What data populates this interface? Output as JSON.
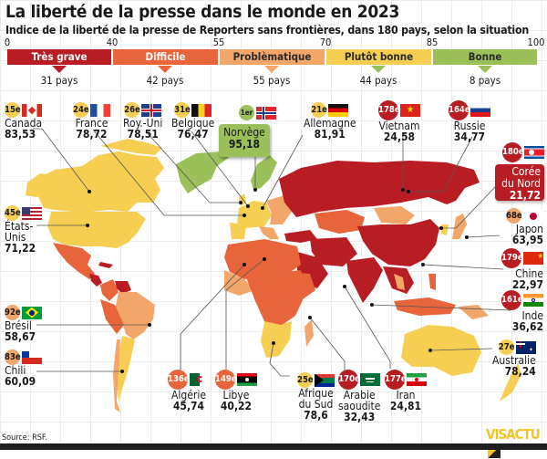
{
  "title": "La liberté de la presse dans le monde en 2023",
  "subtitle": "Indice de la liberté de la presse de Reporters sans frontières, dans 180 pays, selon la situation",
  "scale": {
    "ticks": [
      "0",
      "40",
      "55",
      "70",
      "85",
      "100"
    ],
    "categories": [
      {
        "label": "Très grave",
        "range": [
          0,
          40
        ],
        "count": "31 pays",
        "color": "#b81d24"
      },
      {
        "label": "Difficile",
        "range": [
          40,
          55
        ],
        "count": "42 pays",
        "color": "#e8643a"
      },
      {
        "label": "Problèmatique",
        "range": [
          55,
          70
        ],
        "count": "55 pays",
        "color": "#f2a66a"
      },
      {
        "label": "Plutôt bonne",
        "range": [
          70,
          85
        ],
        "count": "44 pays",
        "color": "#f6cf52"
      },
      {
        "label": "Bonne",
        "range": [
          85,
          100
        ],
        "count": "8 pays",
        "color": "#9bc05a"
      }
    ]
  },
  "countries": {
    "canada": {
      "rank": "15e",
      "name": "Canada",
      "score": "83,53",
      "category": "Plutôt bonne"
    },
    "france": {
      "rank": "24e",
      "name": "France",
      "score": "78,72",
      "category": "Plutôt bonne"
    },
    "uk": {
      "rank": "26e",
      "name": "Roy.-Uni",
      "score": "78,51",
      "category": "Plutôt bonne"
    },
    "belgium": {
      "rank": "31e",
      "name": "Belgique",
      "score": "76,47",
      "category": "Plutôt bonne"
    },
    "norway": {
      "rank": "1er",
      "name": "Norvège",
      "score": "95,18",
      "category": "Bonne"
    },
    "germany": {
      "rank": "21e",
      "name": "Allemagne",
      "score": "81,91",
      "category": "Plutôt bonne"
    },
    "vietnam": {
      "rank": "178e",
      "name": "Vietnam",
      "score": "24,58",
      "category": "Très grave"
    },
    "russia": {
      "rank": "164e",
      "name": "Russie",
      "score": "34,77",
      "category": "Très grave"
    },
    "north_korea": {
      "rank": "180e",
      "name_line1": "Corée",
      "name_line2": "du Nord",
      "score": "21,72",
      "category": "Très grave"
    },
    "japan": {
      "rank": "68e",
      "name": "Japon",
      "score": "63,95",
      "category": "Problèmatique"
    },
    "china": {
      "rank": "179e",
      "name": "Chine",
      "score": "22,97",
      "category": "Très grave"
    },
    "india": {
      "rank": "161e",
      "name": "Inde",
      "score": "36,62",
      "category": "Très grave"
    },
    "australia": {
      "rank": "27e",
      "name": "Australie",
      "score": "78,24",
      "category": "Plutôt bonne"
    },
    "usa": {
      "rank": "45e",
      "name_line1": "États-",
      "name_line2": "Unis",
      "score": "71,22",
      "category": "Plutôt bonne"
    },
    "brazil": {
      "rank": "92e",
      "name": "Brésil",
      "score": "58,67",
      "category": "Problèmatique"
    },
    "chile": {
      "rank": "83e",
      "name": "Chili",
      "score": "60,09",
      "category": "Problèmatique"
    },
    "algeria": {
      "rank": "136e",
      "name": "Algérie",
      "score": "45,74",
      "category": "Difficile"
    },
    "libya": {
      "rank": "149e",
      "name": "Libye",
      "score": "40,22",
      "category": "Difficile"
    },
    "south_africa": {
      "rank": "25e",
      "name_line1": "Afrique",
      "name_line2": "du Sud",
      "score": "78,6",
      "category": "Plutôt bonne"
    },
    "saudi_arabia": {
      "rank": "170e",
      "name_line1": "Arabie",
      "name_line2": "saoudite",
      "score": "32,43",
      "category": "Très grave"
    },
    "iran": {
      "rank": "177e",
      "name": "Iran",
      "score": "24,81",
      "category": "Très grave"
    }
  },
  "source": "Source: RSF.",
  "logo": {
    "part1": "VIS",
    "part2": "ACTU"
  }
}
